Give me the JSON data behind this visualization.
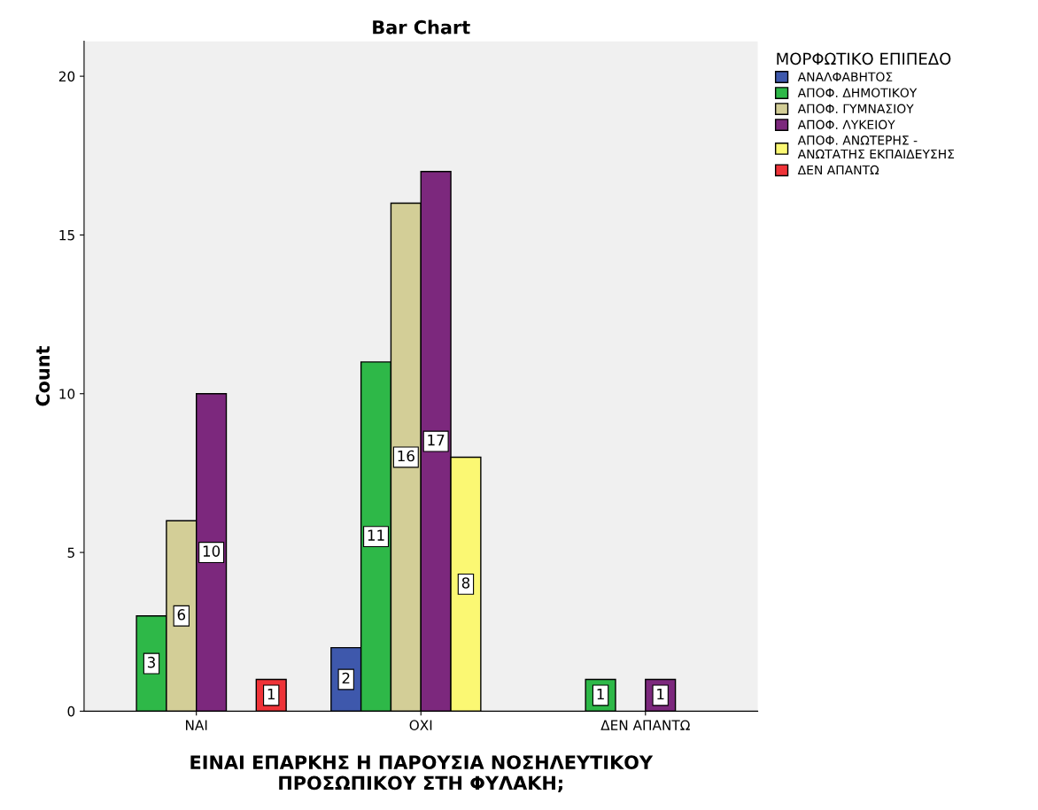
{
  "chart_data": {
    "type": "bar",
    "title": "Bar Chart",
    "xlabel": "ΕΙΝΑΙ ΕΠΑΡΚΗΣ Η ΠΑΡΟΥΣΙΑ ΝΟΣΗΛΕΥΤΙΚΟΥ\nΠΡΟΣΩΠΙΚΟΥ ΣΤΗ ΦΥΛΑΚΗ;",
    "ylabel": "Count",
    "legend_title": "ΜΟΡΦΩΤΙΚΟ ΕΠΙΠΕΔΟ",
    "categories": [
      "ΝΑΙ",
      "ΟΧΙ",
      "ΔΕΝ ΑΠΑΝΤΩ"
    ],
    "series": [
      {
        "name": "ΑΝΑΛΦΑΒΗΤΟΣ",
        "color": "#3e58ac",
        "values": [
          null,
          2,
          null
        ]
      },
      {
        "name": "ΑΠΟΦ. ΔΗΜΟΤΙΚΟΥ",
        "color": "#2eb848",
        "values": [
          3,
          11,
          1
        ]
      },
      {
        "name": "ΑΠΟΦ. ΓΥΜΝΑΣΙΟΥ",
        "color": "#d3ce97",
        "values": [
          6,
          16,
          null
        ]
      },
      {
        "name": "ΑΠΟΦ. ΛΥΚΕΙΟΥ",
        "color": "#7c287d",
        "values": [
          10,
          17,
          1
        ]
      },
      {
        "name": "ΑΠΟΦ. ΑΝΩΤΕΡΗΣ -\nΑΝΩΤΑΤΗΣ ΕΚΠΑΙΔΕΥΣΗΣ",
        "color": "#fbf873",
        "values": [
          null,
          8,
          null
        ]
      },
      {
        "name": "ΔΕΝ ΑΠΑΝΤΩ",
        "color": "#ef3338",
        "values": [
          1,
          null,
          null
        ]
      }
    ],
    "ylim": [
      0,
      21.1
    ],
    "yticks": [
      0,
      5,
      10,
      15,
      20
    ],
    "grid": false,
    "legend": "top right",
    "data_labels": true
  }
}
